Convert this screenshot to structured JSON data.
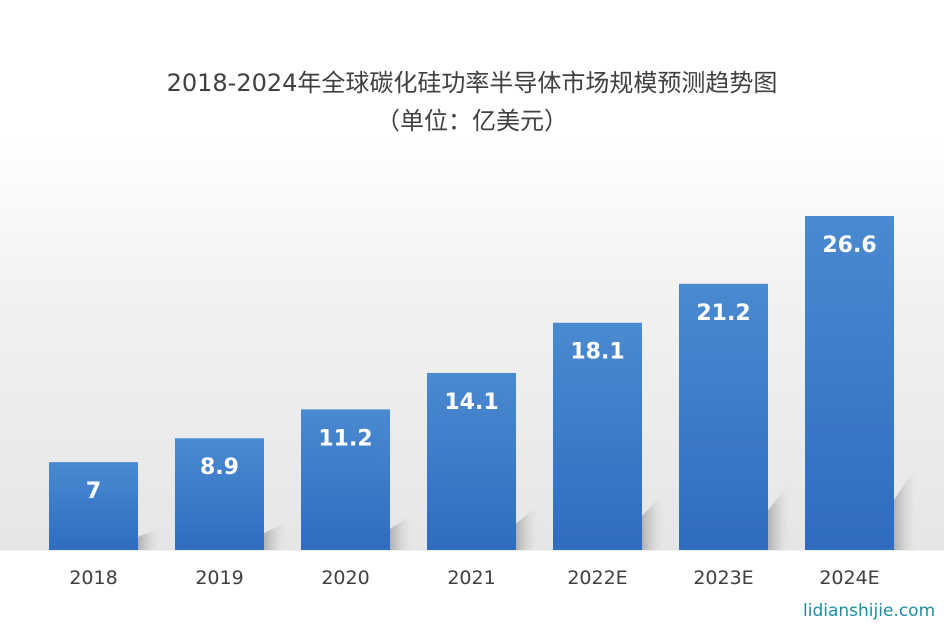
{
  "chart_data": {
    "type": "bar",
    "title": "2018-2024年全球碳化硅功率半导体市场规模预测趋势图",
    "subtitle": "（单位：亿美元）",
    "categories": [
      "2018",
      "2019",
      "2020",
      "2021",
      "2022E",
      "2023E",
      "2024E"
    ],
    "values": [
      7,
      8.9,
      11.2,
      14.1,
      18.1,
      21.2,
      26.6
    ],
    "data_labels": [
      "7",
      "8.9",
      "11.2",
      "14.1",
      "18.1",
      "21.2",
      "26.6"
    ],
    "xlabel": "",
    "ylabel": "",
    "ylim": [
      0,
      26.6
    ],
    "grid": false,
    "legend": "none",
    "bar_color_top": "#4a8ad0",
    "bar_color_bottom": "#2f6cc0"
  },
  "watermark": "lidianshijie.com"
}
